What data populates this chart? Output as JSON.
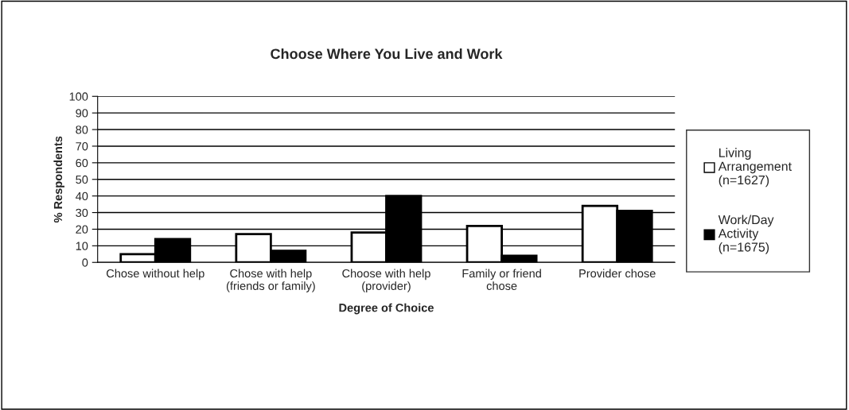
{
  "chart_data": {
    "type": "bar",
    "title": "Choose Where You Live and Work",
    "xlabel": "Degree of Choice",
    "ylabel": "% Respondents",
    "categories": [
      "Chose without help",
      "Chose with help (friends or family)",
      "Choose with help (provider)",
      "Family or friend chose",
      "Provider chose"
    ],
    "series": [
      {
        "name": "Living Arrangement (n=1627)",
        "color": "#ffffff",
        "values": [
          5,
          17,
          18,
          22,
          34
        ]
      },
      {
        "name": "Work/Day Activity (n=1675)",
        "color": "#000000",
        "values": [
          14,
          7,
          40,
          4,
          31
        ]
      }
    ],
    "ylim": [
      0,
      100
    ],
    "yticks": [
      0,
      10,
      20,
      30,
      40,
      50,
      60,
      70,
      80,
      90,
      100
    ],
    "grid": "y",
    "legend": "right"
  }
}
